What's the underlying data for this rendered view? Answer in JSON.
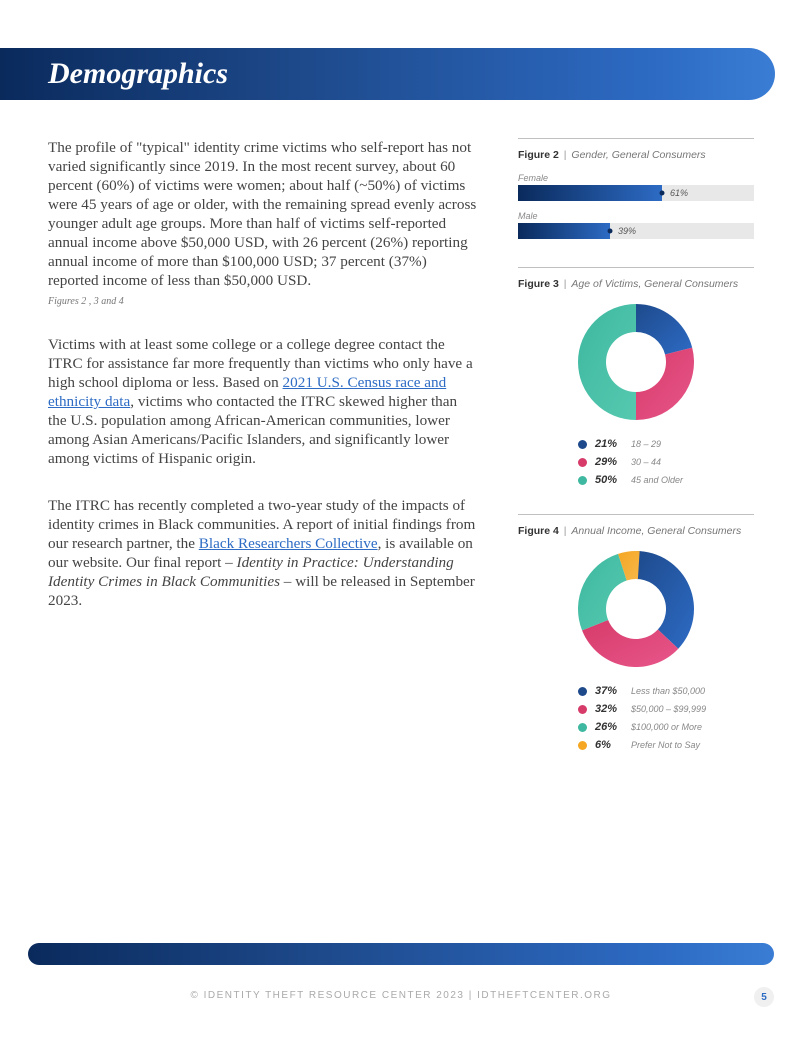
{
  "header": {
    "title": "Demographics"
  },
  "body": {
    "p1": "The profile of \"typical\" identity crime victims who self-report has not varied significantly since 2019. In the most recent survey, about 60 percent (60%) of victims were women; about half (~50%) of victims were 45 years of age or older, with the remaining spread evenly across younger adult age groups. More than half of victims self-reported annual income above $50,000 USD, with 26 percent (26%) reporting annual income of more than $100,000 USD; 37 percent (37%) reported income of less than $50,000 USD.",
    "p1_caption": "Figures 2 , 3 and 4",
    "p2_pre": "Victims with at least some college or a college degree contact the ITRC for assistance far more frequently than victims who only have a high school diploma or less. Based on ",
    "p2_link": "2021 U.S. Census race and ethnicity data",
    "p2_post": ", victims who contacted the ITRC skewed higher than the U.S. population among African-American communities, lower among Asian Americans/Pacific Islanders, and significantly lower among victims of Hispanic origin.",
    "p3_pre": "The ITRC has recently completed a two-year study of the impacts of identity crimes in Black communities. A report of initial findings from our research partner, the ",
    "p3_link": "Black Researchers Collective",
    "p3_mid": ", is available on our website. Our final report – ",
    "p3_italic": "Identity in Practice: Understanding Identity Crimes in Black Communities",
    "p3_post": " – will be released in September 2023."
  },
  "fig2": {
    "label_bold": "Figure 2",
    "label_sub": "Gender, General Consumers",
    "bars": [
      {
        "label": "Female",
        "value": 61,
        "display": "61%",
        "color_start": "#0a2a5c",
        "color_end": "#2d6bc4"
      },
      {
        "label": "Male",
        "value": 39,
        "display": "39%",
        "color_start": "#0a2a5c",
        "color_end": "#2d6bc4"
      }
    ],
    "track_color": "#e8e8e8"
  },
  "fig3": {
    "label_bold": "Figure 3",
    "label_sub": "Age of Victims, General Consumers",
    "type": "donut",
    "inner_radius": 30,
    "outer_radius": 58,
    "segments": [
      {
        "pct": 21,
        "display": "21%",
        "label": "18 – 29",
        "color": "#1e4a8c",
        "grad_end": "#2d6bc4"
      },
      {
        "pct": 29,
        "display": "29%",
        "label": "30 – 44",
        "color": "#d63b6a",
        "grad_end": "#e8568a"
      },
      {
        "pct": 50,
        "display": "50%",
        "label": "45 and Older",
        "color": "#3eb8a0",
        "grad_end": "#56c9b0"
      }
    ]
  },
  "fig4": {
    "label_bold": "Figure 4",
    "label_sub": "Annual Income, General Consumers",
    "type": "donut",
    "inner_radius": 30,
    "outer_radius": 58,
    "segments": [
      {
        "pct": 37,
        "display": "37%",
        "label": "Less than $50,000",
        "color": "#1e4a8c",
        "grad_end": "#2d6bc4"
      },
      {
        "pct": 32,
        "display": "32%",
        "label": "$50,000 – $99,999",
        "color": "#d63b6a",
        "grad_end": "#e8568a"
      },
      {
        "pct": 26,
        "display": "26%",
        "label": "$100,000 or More",
        "color": "#3eb8a0",
        "grad_end": "#56c9b0"
      },
      {
        "pct": 6,
        "display": "6%",
        "label": "Prefer Not to Say",
        "color": "#f5a623",
        "grad_end": "#f7b84a"
      }
    ]
  },
  "footer": {
    "text": "© IDENTITY THEFT RESOURCE CENTER 2023  |  IDTHEFTCENTER.ORG",
    "page": "5"
  }
}
